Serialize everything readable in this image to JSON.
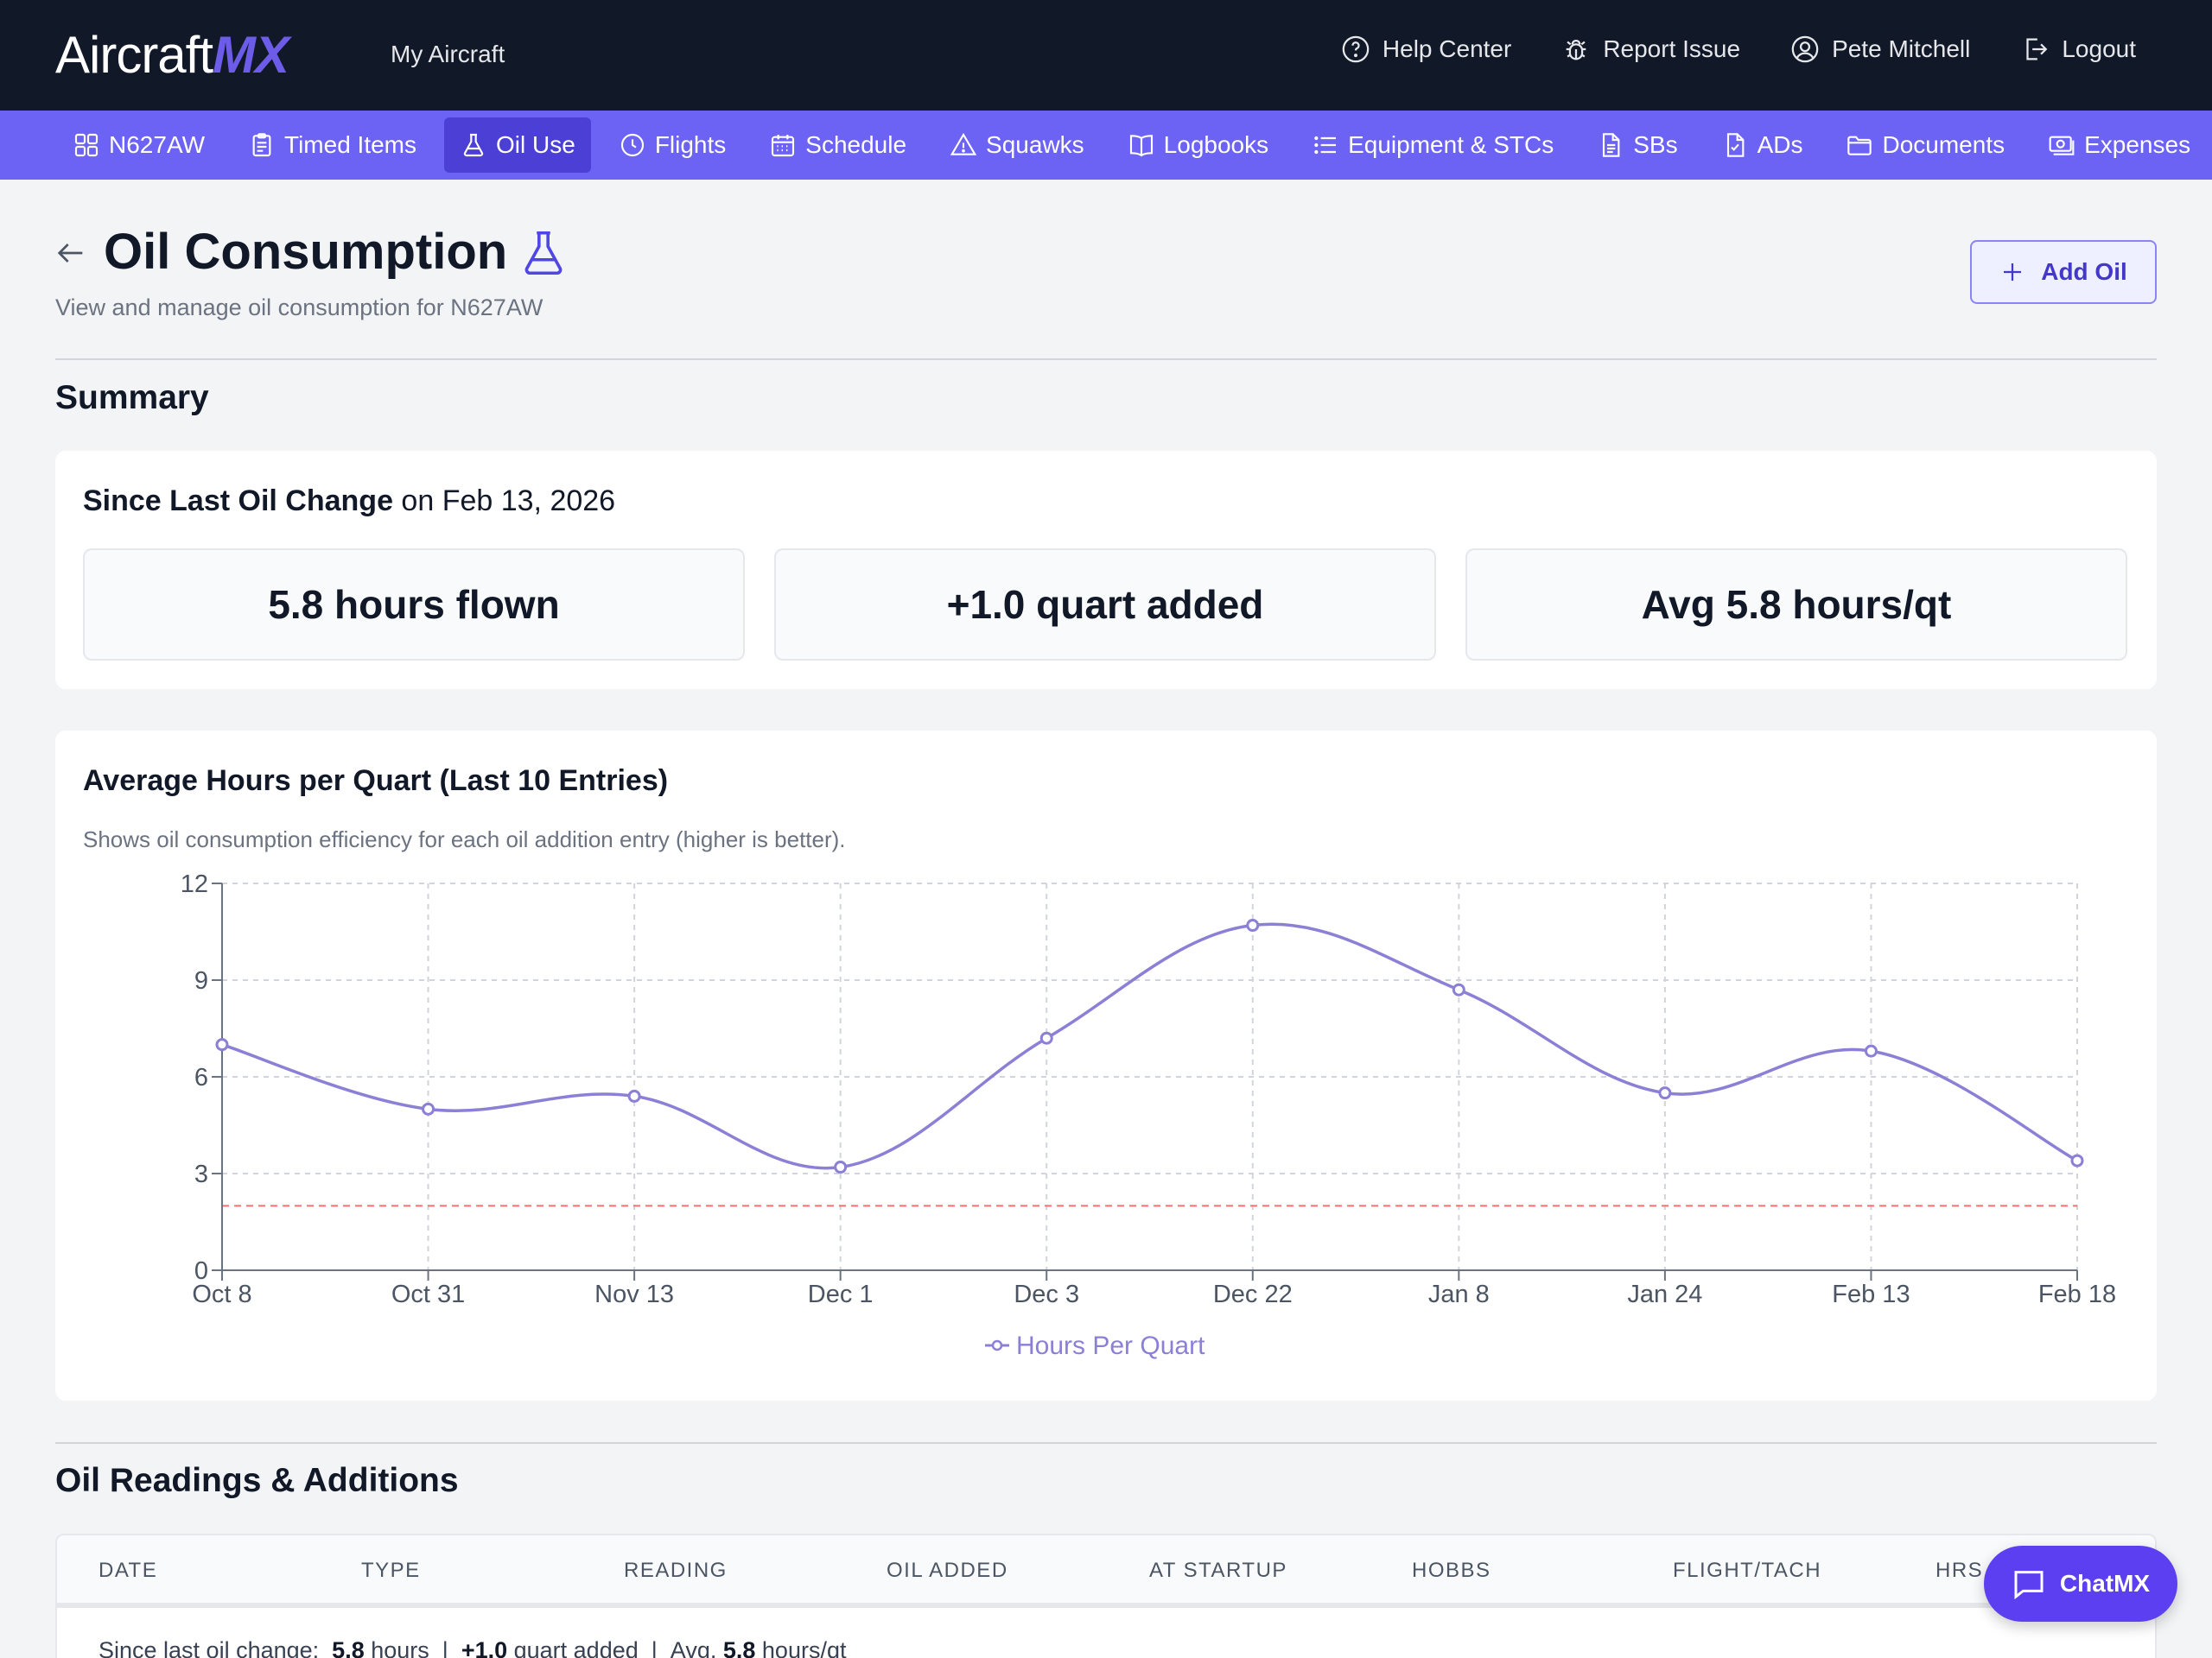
{
  "app": {
    "logo_text": "Aircraft",
    "logo_accent": "MX",
    "my_aircraft": "My Aircraft",
    "top_actions": [
      {
        "label": "Help Center",
        "icon": "help-circle-icon"
      },
      {
        "label": "Report Issue",
        "icon": "bug-icon"
      },
      {
        "label": "Pete Mitchell",
        "icon": "user-circle-icon"
      },
      {
        "label": "Logout",
        "icon": "logout-icon"
      }
    ]
  },
  "nav": {
    "items": [
      {
        "label": "N627AW",
        "icon": "grid-icon"
      },
      {
        "label": "Timed Items",
        "icon": "clipboard-icon"
      },
      {
        "label": "Oil Use",
        "icon": "flask-icon",
        "active": true
      },
      {
        "label": "Flights",
        "icon": "clock-icon"
      },
      {
        "label": "Schedule",
        "icon": "calendar-icon"
      },
      {
        "label": "Squawks",
        "icon": "warning-icon"
      },
      {
        "label": "Logbooks",
        "icon": "book-icon"
      },
      {
        "label": "Equipment & STCs",
        "icon": "list-icon"
      },
      {
        "label": "SBs",
        "icon": "document-icon"
      },
      {
        "label": "ADs",
        "icon": "document-check-icon"
      },
      {
        "label": "Documents",
        "icon": "folder-icon"
      },
      {
        "label": "Expenses",
        "icon": "cash-icon"
      }
    ]
  },
  "page": {
    "title": "Oil Consumption",
    "subtitle": "View and manage oil consumption for N627AW",
    "add_button": "Add Oil"
  },
  "summary": {
    "section_title": "Summary",
    "since_label": "Since Last Oil Change",
    "since_date": " on Feb 13, 2026",
    "stats": [
      "5.8 hours flown",
      "+1.0 quart added",
      "Avg 5.8 hours/qt"
    ]
  },
  "chart": {
    "title": "Average Hours per Quart (Last 10 Entries)",
    "subtitle": "Shows oil consumption efficiency for each oil addition entry (higher is better)."
  },
  "chart_data": {
    "type": "line",
    "categories": [
      "Oct 8",
      "Oct 31",
      "Nov 13",
      "Dec 1",
      "Dec 3",
      "Dec 22",
      "Jan 8",
      "Jan 24",
      "Feb 13",
      "Feb 18"
    ],
    "series": [
      {
        "name": "Hours Per Quart",
        "values": [
          7.0,
          5.0,
          5.4,
          3.2,
          7.2,
          10.7,
          8.7,
          5.5,
          6.8,
          3.4
        ],
        "color": "#8b7fd6"
      }
    ],
    "reference_line": {
      "value": 2,
      "color": "#f87171",
      "style": "dashed"
    },
    "ylim": [
      0,
      12
    ],
    "yticks": [
      0,
      3,
      6,
      9,
      12
    ],
    "grid": true,
    "legend": "bottom",
    "xlabel": "",
    "ylabel": ""
  },
  "table": {
    "section_title": "Oil Readings & Additions",
    "columns": [
      "DATE",
      "TYPE",
      "READING",
      "OIL ADDED",
      "AT STARTUP",
      "HOBBS",
      "FLIGHT/TACH",
      "HRS."
    ],
    "summary_row": {
      "prefix": "Since last oil change:",
      "hours": "5.8",
      "hours_unit": " hours",
      "sep1": "|",
      "added": "+1.0",
      "added_unit": " quart added",
      "sep2": "|",
      "avg_label": "Avg.",
      "avg": "5.8",
      "avg_unit": " hours/qt"
    }
  },
  "chat": {
    "label": "ChatMX"
  },
  "colors": {
    "topbar": "#111827",
    "navbar": "#6c63f5",
    "nav_active": "#4c3fd6",
    "accent": "#4338ca"
  }
}
